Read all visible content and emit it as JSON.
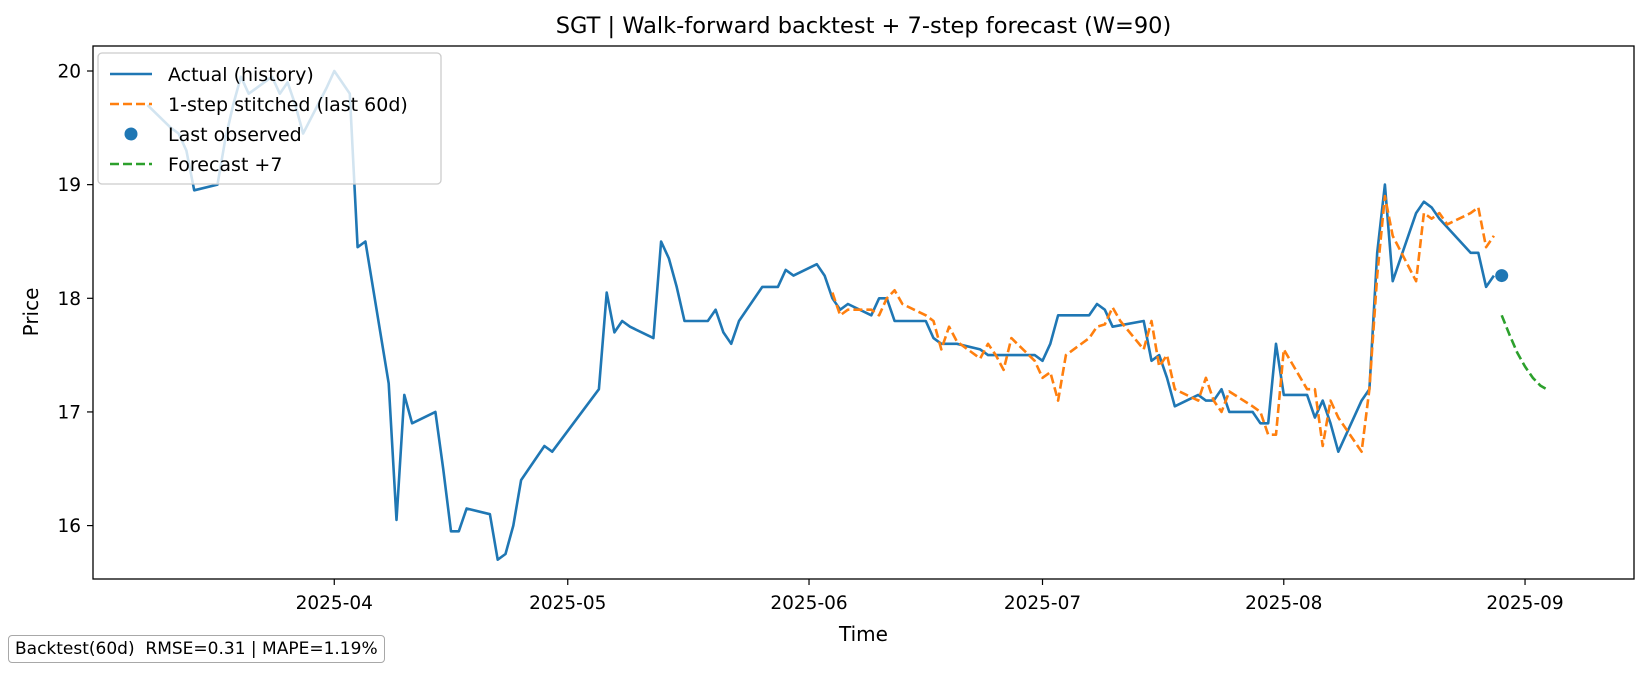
{
  "chart_data": {
    "type": "line",
    "title": "SGT | Walk-forward backtest + 7-step forecast (W=90)",
    "xlabel": "Time",
    "ylabel": "Price",
    "x_axis": "date",
    "xlim": [
      "2025-03-01",
      "2025-09-15"
    ],
    "ylim": [
      15.53,
      20.22
    ],
    "xticks": [
      "2025-04-01",
      "2025-05-01",
      "2025-06-01",
      "2025-07-01",
      "2025-08-01",
      "2025-09-01"
    ],
    "xtick_labels": [
      "2025-04",
      "2025-05",
      "2025-06",
      "2025-07",
      "2025-08",
      "2025-09"
    ],
    "yticks": [
      16,
      17,
      18,
      19,
      20
    ],
    "ytick_labels": [
      "16",
      "17",
      "18",
      "19",
      "20"
    ],
    "grid": false,
    "legend_position": "top-left",
    "series": [
      {
        "name": "Actual (history)",
        "color": "#1f77b4",
        "style": "solid",
        "points": [
          [
            "2025-03-08",
            19.7
          ],
          [
            "2025-03-11",
            19.5
          ],
          [
            "2025-03-12",
            19.45
          ],
          [
            "2025-03-13",
            19.3
          ],
          [
            "2025-03-14",
            18.95
          ],
          [
            "2025-03-17",
            19.0
          ],
          [
            "2025-03-18",
            19.4
          ],
          [
            "2025-03-19",
            19.7
          ],
          [
            "2025-03-20",
            19.95
          ],
          [
            "2025-03-21",
            19.8
          ],
          [
            "2025-03-24",
            19.95
          ],
          [
            "2025-03-25",
            19.8
          ],
          [
            "2025-03-26",
            19.9
          ],
          [
            "2025-03-27",
            19.7
          ],
          [
            "2025-03-28",
            19.45
          ],
          [
            "2025-03-31",
            19.85
          ],
          [
            "2025-04-01",
            20.0
          ],
          [
            "2025-04-02",
            19.9
          ],
          [
            "2025-04-03",
            19.8
          ],
          [
            "2025-04-04",
            18.45
          ],
          [
            "2025-04-05",
            18.5
          ],
          [
            "2025-04-08",
            17.25
          ],
          [
            "2025-04-09",
            16.05
          ],
          [
            "2025-04-10",
            17.15
          ],
          [
            "2025-04-11",
            16.9
          ],
          [
            "2025-04-14",
            17.0
          ],
          [
            "2025-04-15",
            16.5
          ],
          [
            "2025-04-16",
            15.95
          ],
          [
            "2025-04-17",
            15.95
          ],
          [
            "2025-04-18",
            16.15
          ],
          [
            "2025-04-21",
            16.1
          ],
          [
            "2025-04-22",
            15.7
          ],
          [
            "2025-04-23",
            15.75
          ],
          [
            "2025-04-24",
            16.0
          ],
          [
            "2025-04-25",
            16.4
          ],
          [
            "2025-04-28",
            16.7
          ],
          [
            "2025-04-29",
            16.65
          ],
          [
            "2025-05-05",
            17.2
          ],
          [
            "2025-05-06",
            18.05
          ],
          [
            "2025-05-07",
            17.7
          ],
          [
            "2025-05-08",
            17.8
          ],
          [
            "2025-05-09",
            17.75
          ],
          [
            "2025-05-12",
            17.65
          ],
          [
            "2025-05-13",
            18.5
          ],
          [
            "2025-05-14",
            18.35
          ],
          [
            "2025-05-15",
            18.1
          ],
          [
            "2025-05-16",
            17.8
          ],
          [
            "2025-05-19",
            17.8
          ],
          [
            "2025-05-20",
            17.9
          ],
          [
            "2025-05-21",
            17.7
          ],
          [
            "2025-05-22",
            17.6
          ],
          [
            "2025-05-23",
            17.8
          ],
          [
            "2025-05-26",
            18.1
          ],
          [
            "2025-05-28",
            18.1
          ],
          [
            "2025-05-29",
            18.25
          ],
          [
            "2025-05-30",
            18.2
          ],
          [
            "2025-06-02",
            18.3
          ],
          [
            "2025-06-03",
            18.2
          ],
          [
            "2025-06-04",
            18.0
          ],
          [
            "2025-06-05",
            17.9
          ],
          [
            "2025-06-06",
            17.95
          ],
          [
            "2025-06-09",
            17.85
          ],
          [
            "2025-06-10",
            18.0
          ],
          [
            "2025-06-11",
            18.0
          ],
          [
            "2025-06-12",
            17.8
          ],
          [
            "2025-06-16",
            17.8
          ],
          [
            "2025-06-17",
            17.65
          ],
          [
            "2025-06-18",
            17.6
          ],
          [
            "2025-06-20",
            17.6
          ],
          [
            "2025-06-23",
            17.55
          ],
          [
            "2025-06-24",
            17.5
          ],
          [
            "2025-06-30",
            17.5
          ],
          [
            "2025-07-01",
            17.45
          ],
          [
            "2025-07-02",
            17.6
          ],
          [
            "2025-07-03",
            17.85
          ],
          [
            "2025-07-07",
            17.85
          ],
          [
            "2025-07-08",
            17.95
          ],
          [
            "2025-07-09",
            17.9
          ],
          [
            "2025-07-10",
            17.75
          ],
          [
            "2025-07-14",
            17.8
          ],
          [
            "2025-07-15",
            17.45
          ],
          [
            "2025-07-16",
            17.5
          ],
          [
            "2025-07-17",
            17.3
          ],
          [
            "2025-07-18",
            17.05
          ],
          [
            "2025-07-21",
            17.15
          ],
          [
            "2025-07-22",
            17.1
          ],
          [
            "2025-07-23",
            17.1
          ],
          [
            "2025-07-24",
            17.2
          ],
          [
            "2025-07-25",
            17.0
          ],
          [
            "2025-07-28",
            17.0
          ],
          [
            "2025-07-29",
            16.9
          ],
          [
            "2025-07-30",
            16.9
          ],
          [
            "2025-07-31",
            17.6
          ],
          [
            "2025-08-01",
            17.15
          ],
          [
            "2025-08-04",
            17.15
          ],
          [
            "2025-08-05",
            16.95
          ],
          [
            "2025-08-06",
            17.1
          ],
          [
            "2025-08-07",
            16.9
          ],
          [
            "2025-08-08",
            16.65
          ],
          [
            "2025-08-11",
            17.1
          ],
          [
            "2025-08-12",
            17.2
          ],
          [
            "2025-08-13",
            18.4
          ],
          [
            "2025-08-14",
            19.0
          ],
          [
            "2025-08-15",
            18.15
          ],
          [
            "2025-08-18",
            18.75
          ],
          [
            "2025-08-19",
            18.85
          ],
          [
            "2025-08-20",
            18.8
          ],
          [
            "2025-08-21",
            18.7
          ],
          [
            "2025-08-25",
            18.4
          ],
          [
            "2025-08-26",
            18.4
          ],
          [
            "2025-08-27",
            18.1
          ],
          [
            "2025-08-28",
            18.2
          ]
        ]
      },
      {
        "name": "1-step stitched (last 60d)",
        "color": "#ff7f0e",
        "style": "dashed",
        "points": [
          [
            "2025-06-04",
            18.05
          ],
          [
            "2025-06-05",
            17.85
          ],
          [
            "2025-06-06",
            17.9
          ],
          [
            "2025-06-09",
            17.9
          ],
          [
            "2025-06-10",
            17.85
          ],
          [
            "2025-06-11",
            18.0
          ],
          [
            "2025-06-12",
            18.07
          ],
          [
            "2025-06-13",
            17.95
          ],
          [
            "2025-06-16",
            17.85
          ],
          [
            "2025-06-17",
            17.8
          ],
          [
            "2025-06-18",
            17.55
          ],
          [
            "2025-06-19",
            17.75
          ],
          [
            "2025-06-20",
            17.62
          ],
          [
            "2025-06-23",
            17.47
          ],
          [
            "2025-06-24",
            17.6
          ],
          [
            "2025-06-25",
            17.5
          ],
          [
            "2025-06-26",
            17.37
          ],
          [
            "2025-06-27",
            17.65
          ],
          [
            "2025-06-30",
            17.45
          ],
          [
            "2025-07-01",
            17.3
          ],
          [
            "2025-07-02",
            17.35
          ],
          [
            "2025-07-03",
            17.1
          ],
          [
            "2025-07-04",
            17.5
          ],
          [
            "2025-07-07",
            17.65
          ],
          [
            "2025-07-08",
            17.75
          ],
          [
            "2025-07-09",
            17.77
          ],
          [
            "2025-07-10",
            17.92
          ],
          [
            "2025-07-11",
            17.8
          ],
          [
            "2025-07-14",
            17.55
          ],
          [
            "2025-07-15",
            17.8
          ],
          [
            "2025-07-16",
            17.4
          ],
          [
            "2025-07-17",
            17.5
          ],
          [
            "2025-07-18",
            17.2
          ],
          [
            "2025-07-21",
            17.1
          ],
          [
            "2025-07-22",
            17.3
          ],
          [
            "2025-07-23",
            17.1
          ],
          [
            "2025-07-24",
            17.0
          ],
          [
            "2025-07-25",
            17.18
          ],
          [
            "2025-07-28",
            17.05
          ],
          [
            "2025-07-29",
            17.0
          ],
          [
            "2025-07-30",
            16.8
          ],
          [
            "2025-07-31",
            16.8
          ],
          [
            "2025-08-01",
            17.55
          ],
          [
            "2025-08-04",
            17.2
          ],
          [
            "2025-08-05",
            17.2
          ],
          [
            "2025-08-06",
            16.7
          ],
          [
            "2025-08-07",
            17.1
          ],
          [
            "2025-08-08",
            16.95
          ],
          [
            "2025-08-11",
            16.65
          ],
          [
            "2025-08-12",
            17.2
          ],
          [
            "2025-08-13",
            18.2
          ],
          [
            "2025-08-14",
            18.9
          ],
          [
            "2025-08-15",
            18.55
          ],
          [
            "2025-08-18",
            18.15
          ],
          [
            "2025-08-19",
            18.75
          ],
          [
            "2025-08-20",
            18.7
          ],
          [
            "2025-08-21",
            18.75
          ],
          [
            "2025-08-22",
            18.65
          ],
          [
            "2025-08-25",
            18.75
          ],
          [
            "2025-08-26",
            18.8
          ],
          [
            "2025-08-27",
            18.45
          ],
          [
            "2025-08-28",
            18.55
          ]
        ]
      },
      {
        "name": "Forecast +7",
        "color": "#2ca02c",
        "style": "dashed",
        "points": [
          [
            "2025-08-29",
            17.85
          ],
          [
            "2025-08-30",
            17.68
          ],
          [
            "2025-08-31",
            17.52
          ],
          [
            "2025-09-01",
            17.4
          ],
          [
            "2025-09-02",
            17.3
          ],
          [
            "2025-09-03",
            17.23
          ],
          [
            "2025-09-04",
            17.19
          ]
        ]
      }
    ],
    "markers": [
      {
        "name": "Last observed",
        "color": "#1f77b4",
        "x": "2025-08-29",
        "y": 18.2
      }
    ]
  },
  "metrics": {
    "text": "Backtest(60d)  RMSE=0.31 | MAPE=1.19%"
  }
}
